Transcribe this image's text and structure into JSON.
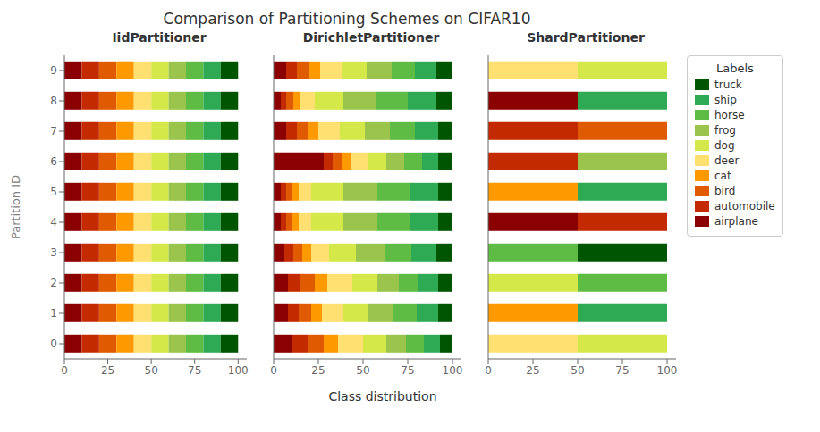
{
  "title": "Comparison of Partitioning Schemes on CIFAR10",
  "xlabel": "Class distribution",
  "chart_data": [
    {
      "type": "bar",
      "orientation": "horizontal",
      "stacked": true,
      "grid": false,
      "title": "IidPartitioner",
      "ylabel": "Partition ID",
      "categories": [
        "0",
        "1",
        "2",
        "3",
        "4",
        "5",
        "6",
        "7",
        "8",
        "9"
      ],
      "xlim": [
        0,
        105
      ],
      "xticks": [
        0,
        25,
        50,
        75,
        100
      ],
      "ylim": [
        -0.5,
        9.5
      ],
      "series": [
        {
          "name": "airplane",
          "color": "#8B0000",
          "values": [
            10,
            10,
            10,
            10,
            10,
            10,
            10,
            10,
            10,
            10
          ]
        },
        {
          "name": "automobile",
          "color": "#C42A00",
          "values": [
            10,
            10,
            10,
            10,
            10,
            10,
            10,
            10,
            10,
            10
          ]
        },
        {
          "name": "bird",
          "color": "#E05A00",
          "values": [
            10,
            10,
            10,
            10,
            10,
            10,
            10,
            10,
            10,
            10
          ]
        },
        {
          "name": "cat",
          "color": "#FF9900",
          "values": [
            10,
            10,
            10,
            10,
            10,
            10,
            10,
            10,
            10,
            10
          ]
        },
        {
          "name": "deer",
          "color": "#FFE070",
          "values": [
            10,
            10,
            10,
            10,
            10,
            10,
            10,
            10,
            10,
            10
          ]
        },
        {
          "name": "dog",
          "color": "#D4E84A",
          "values": [
            10,
            10,
            10,
            10,
            10,
            10,
            10,
            10,
            10,
            10
          ]
        },
        {
          "name": "frog",
          "color": "#9BC44C",
          "values": [
            10,
            10,
            10,
            10,
            10,
            10,
            10,
            10,
            10,
            10
          ]
        },
        {
          "name": "horse",
          "color": "#5EBB44",
          "values": [
            10,
            10,
            10,
            10,
            10,
            10,
            10,
            10,
            10,
            10
          ]
        },
        {
          "name": "ship",
          "color": "#2EAA55",
          "values": [
            10,
            10,
            10,
            10,
            10,
            10,
            10,
            10,
            10,
            10
          ]
        },
        {
          "name": "truck",
          "color": "#005500",
          "values": [
            10,
            10,
            10,
            10,
            10,
            10,
            10,
            10,
            10,
            10
          ]
        }
      ]
    },
    {
      "type": "bar",
      "orientation": "horizontal",
      "stacked": true,
      "grid": false,
      "title": "DirichletPartitioner",
      "tick_labels": "x",
      "categories": [
        "0",
        "1",
        "2",
        "3",
        "4",
        "5",
        "6",
        "7",
        "8",
        "9"
      ],
      "xlim": [
        0,
        105
      ],
      "xticks": [
        0,
        25,
        50,
        75,
        100
      ],
      "ylim": [
        -0.5,
        9.5
      ],
      "series": [
        {
          "name": "airplane",
          "color": "#8B0000",
          "values": [
            10,
            8,
            8,
            6,
            4,
            4,
            28,
            7,
            4,
            7
          ]
        },
        {
          "name": "automobile",
          "color": "#C42A00",
          "values": [
            9,
            6,
            7,
            5,
            3,
            3,
            5,
            6,
            3,
            6
          ]
        },
        {
          "name": "bird",
          "color": "#E05A00",
          "values": [
            9,
            7,
            8,
            5,
            3,
            3,
            5,
            6,
            4,
            7
          ]
        },
        {
          "name": "cat",
          "color": "#FF9900",
          "values": [
            8,
            6,
            7,
            5,
            4,
            4,
            5,
            6,
            4,
            6
          ]
        },
        {
          "name": "deer",
          "color": "#FFE070",
          "values": [
            14,
            12,
            14,
            10,
            7,
            7,
            10,
            12,
            8,
            12
          ]
        },
        {
          "name": "dog",
          "color": "#D4E84A",
          "values": [
            13,
            14,
            14,
            15,
            18,
            18,
            10,
            14,
            16,
            14
          ]
        },
        {
          "name": "frog",
          "color": "#9BC44C",
          "values": [
            11,
            14,
            12,
            16,
            19,
            19,
            10,
            14,
            18,
            14
          ]
        },
        {
          "name": "horse",
          "color": "#5EBB44",
          "values": [
            10,
            13,
            11,
            15,
            18,
            18,
            10,
            14,
            18,
            13
          ]
        },
        {
          "name": "ship",
          "color": "#2EAA55",
          "values": [
            9,
            12,
            11,
            14,
            16,
            16,
            9,
            13,
            16,
            12
          ]
        },
        {
          "name": "truck",
          "color": "#005500",
          "values": [
            7,
            8,
            8,
            9,
            8,
            8,
            8,
            8,
            9,
            9
          ]
        }
      ]
    },
    {
      "type": "bar",
      "orientation": "horizontal",
      "stacked": true,
      "grid": false,
      "title": "ShardPartitioner",
      "tick_labels": "x",
      "legend": "right",
      "legend_title": "Labels",
      "categories": [
        "0",
        "1",
        "2",
        "3",
        "4",
        "5",
        "6",
        "7",
        "8",
        "9"
      ],
      "xlim": [
        0,
        105
      ],
      "xticks": [
        0,
        25,
        50,
        75,
        100
      ],
      "ylim": [
        -0.5,
        9.5
      ],
      "series": [
        {
          "name": "airplane",
          "color": "#8B0000",
          "values": [
            0,
            0,
            0,
            0,
            50,
            0,
            0,
            0,
            50,
            0
          ]
        },
        {
          "name": "automobile",
          "color": "#C42A00",
          "values": [
            0,
            0,
            0,
            0,
            50,
            0,
            50,
            50,
            0,
            0
          ]
        },
        {
          "name": "bird",
          "color": "#E05A00",
          "values": [
            0,
            0,
            0,
            0,
            0,
            0,
            0,
            50,
            0,
            0
          ]
        },
        {
          "name": "cat",
          "color": "#FF9900",
          "values": [
            0,
            50,
            0,
            0,
            0,
            50,
            0,
            0,
            0,
            0
          ]
        },
        {
          "name": "deer",
          "color": "#FFE070",
          "values": [
            50,
            0,
            0,
            0,
            0,
            0,
            0,
            0,
            0,
            50
          ]
        },
        {
          "name": "dog",
          "color": "#D4E84A",
          "values": [
            50,
            0,
            50,
            0,
            0,
            0,
            0,
            0,
            0,
            50
          ]
        },
        {
          "name": "frog",
          "color": "#9BC44C",
          "values": [
            0,
            0,
            0,
            0,
            0,
            0,
            50,
            0,
            0,
            0
          ]
        },
        {
          "name": "horse",
          "color": "#5EBB44",
          "values": [
            0,
            0,
            50,
            50,
            0,
            0,
            0,
            0,
            0,
            0
          ]
        },
        {
          "name": "ship",
          "color": "#2EAA55",
          "values": [
            0,
            50,
            0,
            0,
            0,
            50,
            0,
            0,
            50,
            0
          ]
        },
        {
          "name": "truck",
          "color": "#005500",
          "values": [
            0,
            0,
            0,
            50,
            0,
            0,
            0,
            0,
            0,
            0
          ]
        }
      ]
    }
  ]
}
